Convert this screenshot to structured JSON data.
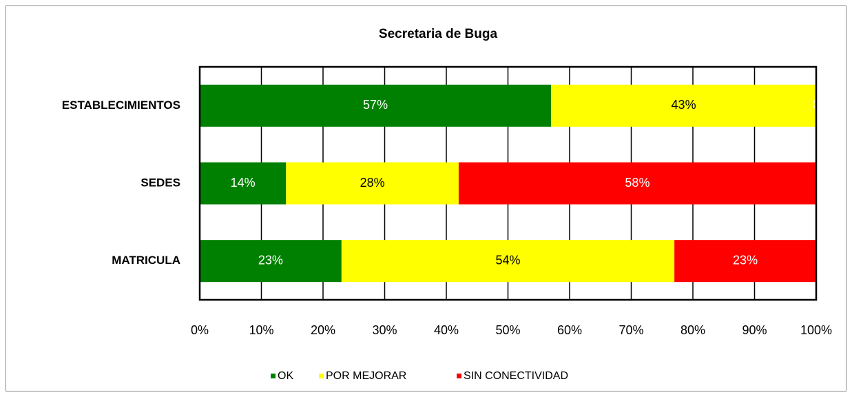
{
  "chart_data": {
    "type": "stacked-bar-horizontal",
    "title": "Secretaria de Buga",
    "categories": [
      "ESTABLECIMIENTOS",
      "SEDES",
      "MATRICULA"
    ],
    "series": [
      {
        "name": "OK",
        "color": "#008000",
        "values": [
          57,
          14,
          23
        ],
        "value_labels": [
          "57%",
          "14%",
          "23%"
        ]
      },
      {
        "name": "POR MEJORAR",
        "color": "#ffff00",
        "values": [
          43,
          28,
          54
        ],
        "value_labels": [
          "43%",
          "28%",
          "54%"
        ]
      },
      {
        "name": "SIN CONECTIVIDAD",
        "color": "#ff0000",
        "values": [
          0,
          58,
          23
        ],
        "value_labels": [
          "0",
          "58%",
          "23%"
        ]
      }
    ],
    "xlim": [
      0,
      100
    ],
    "xticks": [
      {
        "value": 0,
        "label": "0%"
      },
      {
        "value": 10,
        "label": "10%"
      },
      {
        "value": 20,
        "label": "20%"
      },
      {
        "value": 30,
        "label": "30%"
      },
      {
        "value": 40,
        "label": "40%"
      },
      {
        "value": 50,
        "label": "50%"
      },
      {
        "value": 60,
        "label": "60%"
      },
      {
        "value": 70,
        "label": "70%"
      },
      {
        "value": 80,
        "label": "80%"
      },
      {
        "value": 90,
        "label": "90%"
      },
      {
        "value": 100,
        "label": "100%"
      }
    ],
    "grid": true,
    "legend": "bottom"
  }
}
